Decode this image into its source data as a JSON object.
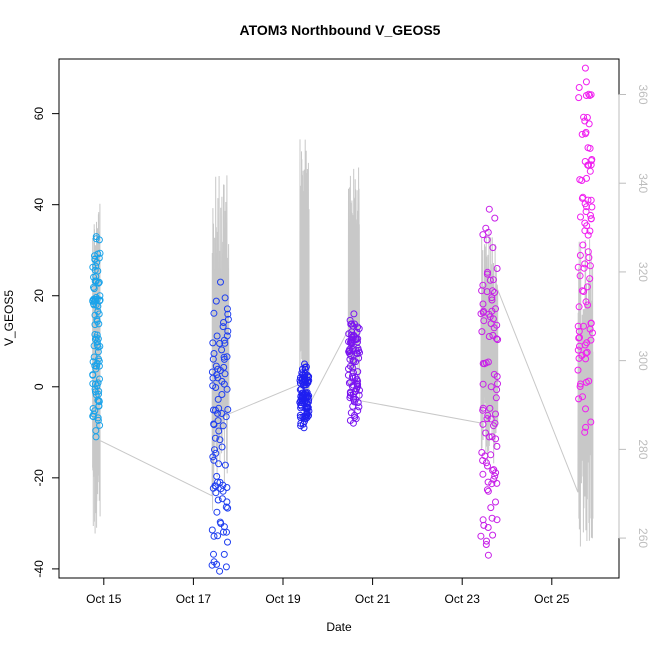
{
  "chart_data": {
    "type": "scatter",
    "title": "ATOM3 Northbound V_GEOS5",
    "xlabel": "Date",
    "ylabel": "V_GEOS5",
    "xlim": [
      "2016-10-14T00:00",
      "2016-10-26T12:00"
    ],
    "ylim": [
      -42,
      72
    ],
    "y2lim": [
      251,
      368
    ],
    "x_ticks": [
      {
        "x": "2016-10-15",
        "label": "Oct 15"
      },
      {
        "x": "2016-10-17",
        "label": "Oct 17"
      },
      {
        "x": "2016-10-19",
        "label": "Oct 19"
      },
      {
        "x": "2016-10-21",
        "label": "Oct 21"
      },
      {
        "x": "2016-10-23",
        "label": "Oct 23"
      },
      {
        "x": "2016-10-25",
        "label": "Oct 25"
      }
    ],
    "y_ticks": [
      -40,
      -20,
      0,
      20,
      40,
      60
    ],
    "y2_ticks": [
      260,
      280,
      300,
      320,
      340,
      360
    ],
    "grid": false,
    "legend": "none",
    "point_colors": [
      "#1aa3ea",
      "#1f3ff0",
      "#1f1ff0",
      "#7a14f0",
      "#c71fe8",
      "#f01ff0"
    ],
    "line_color": "#c8c8c8",
    "secondary_series_description_shown": false,
    "flights": [
      {
        "segment": 1,
        "start": "2016-10-14T18:00",
        "end": "2016-10-14T22:00",
        "v_range": [
          -11,
          33
        ],
        "secondary_range": [
          258,
          336
        ],
        "secondary_end": 282
      },
      {
        "segment": 2,
        "start": "2016-10-17T10:00",
        "end": "2016-10-17T19:00",
        "v_range": [
          -40.5,
          23
        ],
        "secondary_range": [
          266,
          342
        ],
        "secondary_end": 288
      },
      {
        "segment": 3,
        "start": "2016-10-19T09:00",
        "end": "2016-10-19T14:00",
        "v_range": [
          -9,
          5
        ],
        "secondary_range": [
          288,
          350
        ],
        "secondary_end": 290
      },
      {
        "segment": 4,
        "start": "2016-10-20T11:00",
        "end": "2016-10-20T17:00",
        "v_range": [
          -8,
          16
        ],
        "secondary_range": [
          292,
          344
        ],
        "secondary_end": 291
      },
      {
        "segment": 5,
        "start": "2016-10-23T10:00",
        "end": "2016-10-23T19:00",
        "v_range": [
          -37,
          39
        ],
        "secondary_range": [
          276,
          330
        ],
        "secondary_end": 316
      },
      {
        "segment": 6,
        "start": "2016-10-25T14:00",
        "end": "2016-10-25T22:00",
        "v_range": [
          -10,
          70
        ],
        "secondary_range": [
          258,
          328
        ],
        "secondary_end": 302
      }
    ]
  }
}
